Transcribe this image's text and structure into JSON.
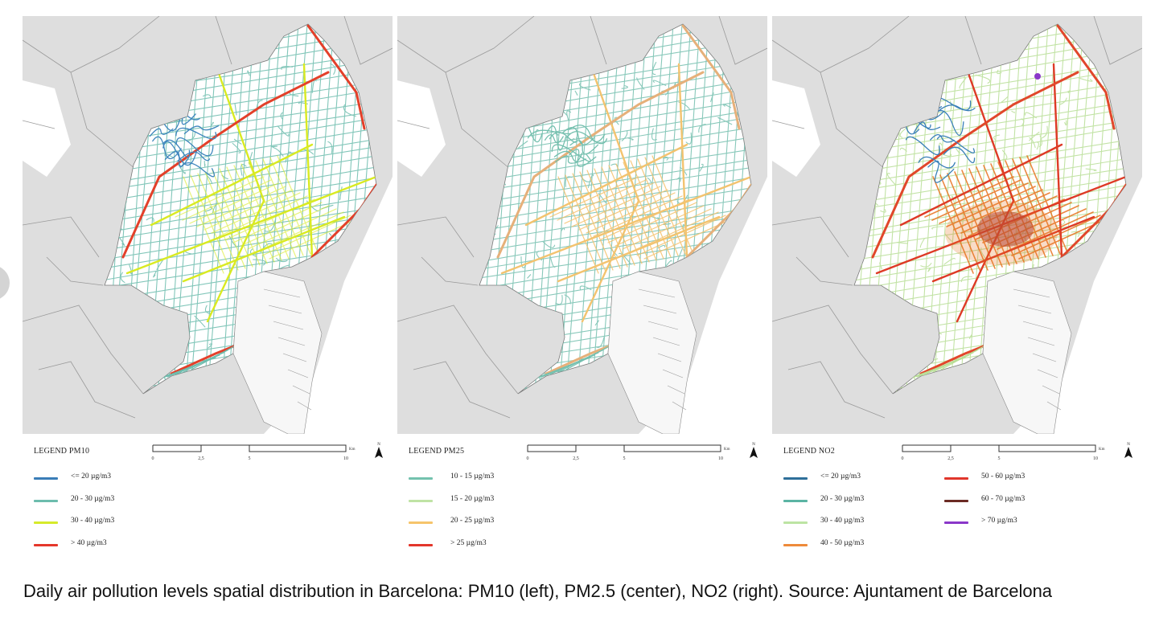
{
  "colors": {
    "background": "#ffffff",
    "land_outside": "#dedede",
    "city_area": "#ffffff",
    "boundary": "#9a9a9a"
  },
  "panels": [
    {
      "id": "pm10",
      "legend_title": "LEGEND PM10",
      "base_color": "#6cbcad",
      "hot_color": "#d9ea22",
      "corridor_color": "#d9ea22",
      "highway_color": "#e3402a",
      "hill_color": "#3f86bd",
      "items": [
        {
          "label": "<= 20 µg/m3",
          "color": "#3a7db7"
        },
        {
          "label": "20 - 30 µg/m3",
          "color": "#6cbcad"
        },
        {
          "label": "30 - 40 µg/m3",
          "color": "#d6ea2a"
        },
        {
          "label": "> 40 µg/m3",
          "color": "#e5372b"
        }
      ]
    },
    {
      "id": "pm25",
      "legend_title": "LEGEND PM25",
      "base_color": "#74bfae",
      "hot_color": "#f5c06a",
      "corridor_color": "#f3c36f",
      "highway_color": "#e6b07a",
      "hill_color": "#74bfae",
      "items": [
        {
          "label": "10 - 15 µg/m3",
          "color": "#74c2ae"
        },
        {
          "label": "15 - 20 µg/m3",
          "color": "#bfe3a4"
        },
        {
          "label": "20 - 25 µg/m3",
          "color": "#f6c46b"
        },
        {
          "label": "> 25 µg/m3",
          "color": "#e3362b"
        }
      ]
    },
    {
      "id": "no2",
      "legend_title": "LEGEND NO2",
      "base_color": "#b8de96",
      "hot_color": "#e8731f",
      "corridor_color": "#de3a26",
      "highway_color": "#e1472b",
      "hill_color": "#3a80b8",
      "items": [
        {
          "label": "<= 20 µg/m3",
          "color": "#2f6f9a"
        },
        {
          "label": "20 - 30 µg/m3",
          "color": "#5bb4a3"
        },
        {
          "label": "30 - 40 µg/m3",
          "color": "#bde4a3"
        },
        {
          "label": "40 - 50 µg/m3",
          "color": "#ee8a3a"
        },
        {
          "label": "50 - 60 µg/m3",
          "color": "#e0362b"
        },
        {
          "label": "60 - 70 µg/m3",
          "color": "#6b2b24"
        },
        {
          "label": "> 70 µg/m3",
          "color": "#8a37c9"
        }
      ]
    }
  ],
  "scale_bar": {
    "ticks": [
      "0",
      "2,5",
      "5",
      "10"
    ],
    "unit": "Km"
  },
  "north_label": "N",
  "caption": "Daily air pollution levels spatial distribution in Barcelona: PM10 (left), PM2.5 (center), NO2 (right). Source: Ajuntament de Barcelona"
}
